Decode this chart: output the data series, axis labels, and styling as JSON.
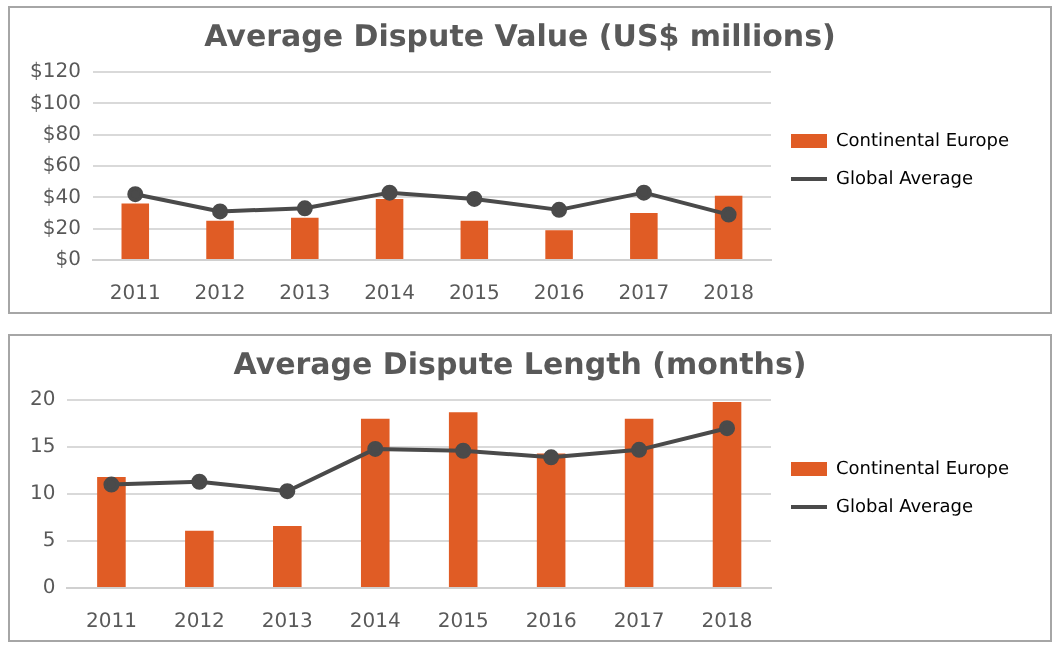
{
  "chart_data": [
    {
      "type": "bar",
      "title": "Average Dispute Value (US$ millions)",
      "categories": [
        "2011",
        "2012",
        "2013",
        "2014",
        "2015",
        "2016",
        "2017",
        "2018"
      ],
      "series": [
        {
          "name": "Continental Europe",
          "color": "#e05c25",
          "values": [
            36,
            25,
            27,
            39,
            25,
            19,
            30,
            41
          ]
        },
        {
          "name": "Global Average",
          "type": "line",
          "color": "#4a4a4a",
          "values": [
            42,
            31,
            33,
            43,
            39,
            32,
            43,
            29
          ]
        }
      ],
      "ylim": [
        0,
        120
      ],
      "yticks": [
        {
          "value": 0,
          "label": "$0"
        },
        {
          "value": 20,
          "label": "$20"
        },
        {
          "value": 40,
          "label": "$40"
        },
        {
          "value": 60,
          "label": "$60"
        },
        {
          "value": 80,
          "label": "$80"
        },
        {
          "value": 100,
          "label": "$100"
        },
        {
          "value": 120,
          "label": "$120"
        }
      ],
      "grid": "y",
      "legend": "right",
      "marker": "circle"
    },
    {
      "type": "bar",
      "title": "Average Dispute Length (months)",
      "categories": [
        "2011",
        "2012",
        "2013",
        "2014",
        "2015",
        "2016",
        "2017",
        "2018"
      ],
      "series": [
        {
          "name": "Continental Europe",
          "color": "#e05c25",
          "values": [
            11.8,
            6.1,
            6.6,
            18,
            18.7,
            14.3,
            18,
            19.8
          ]
        },
        {
          "name": "Global Average",
          "type": "line",
          "color": "#4a4a4a",
          "values": [
            11,
            11.3,
            10.3,
            14.8,
            14.6,
            13.9,
            14.7,
            17
          ]
        }
      ],
      "ylim": [
        0,
        20
      ],
      "yticks": [
        0,
        5,
        10,
        15,
        20
      ],
      "grid": "y",
      "legend": "right",
      "marker": "circle"
    }
  ]
}
